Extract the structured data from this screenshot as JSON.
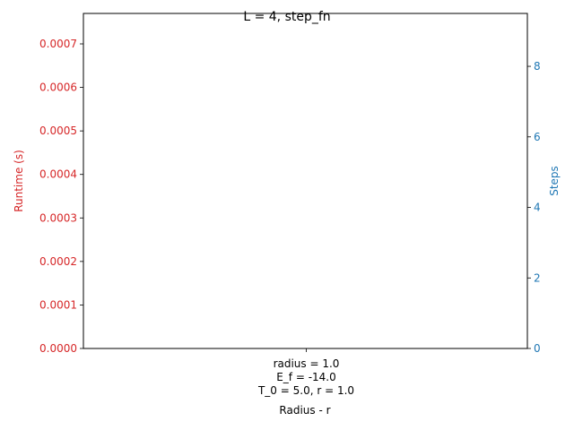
{
  "colors": {
    "left_axis": "#d62728",
    "right_axis": "#1f77b4",
    "axes": "#000000",
    "background": "#ffffff"
  },
  "chart_data": {
    "type": "bar",
    "title": "L = 4, step_fn",
    "xlabel": "Radius - r",
    "categories": [
      [
        "radius = 1.0",
        "E_f = -14.0",
        "T_0 = 5.0, r = 1.0"
      ]
    ],
    "y_left": {
      "label": "Runtime (s)",
      "ylim": [
        0,
        0.00077
      ],
      "ticks": [
        "0.0000",
        "0.0001",
        "0.0002",
        "0.0003",
        "0.0004",
        "0.0005",
        "0.0006",
        "0.0007"
      ]
    },
    "y_right": {
      "label": "Steps",
      "ylim": [
        0,
        9.5
      ],
      "ticks": [
        "0",
        "2",
        "4",
        "6",
        "8"
      ]
    },
    "grid": false,
    "series": []
  }
}
